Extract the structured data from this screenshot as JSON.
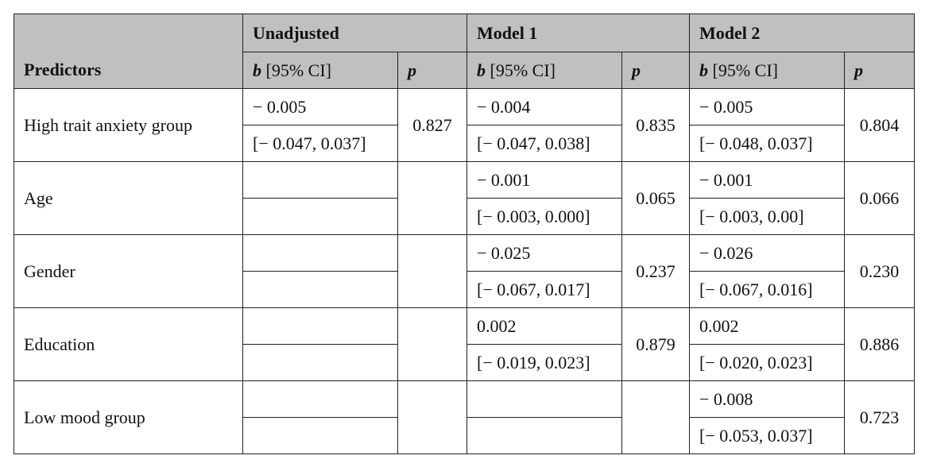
{
  "table": {
    "predictors_header": "Predictors",
    "groups": [
      "Unadjusted",
      "Model 1",
      "Model 2"
    ],
    "b_symbol": "b",
    "b_ci": "[95% CI]",
    "p_symbol": "p",
    "rows": [
      {
        "predictor": "High trait anxiety group",
        "models": [
          {
            "b": "− 0.005",
            "ci": "[− 0.047, 0.037]",
            "p": "0.827"
          },
          {
            "b": "− 0.004",
            "ci": "[− 0.047, 0.038]",
            "p": "0.835"
          },
          {
            "b": "− 0.005",
            "ci": "[− 0.048, 0.037]",
            "p": "0.804"
          }
        ]
      },
      {
        "predictor": "Age",
        "models": [
          null,
          {
            "b": "− 0.001",
            "ci": "[− 0.003, 0.000]",
            "p": "0.065"
          },
          {
            "b": "− 0.001",
            "ci": "[− 0.003, 0.00]",
            "p": "0.066"
          }
        ]
      },
      {
        "predictor": "Gender",
        "models": [
          null,
          {
            "b": "− 0.025",
            "ci": "[− 0.067, 0.017]",
            "p": "0.237"
          },
          {
            "b": "− 0.026",
            "ci": "[− 0.067, 0.016]",
            "p": "0.230"
          }
        ]
      },
      {
        "predictor": "Education",
        "models": [
          null,
          {
            "b": "0.002",
            "ci": "[− 0.019, 0.023]",
            "p": "0.879"
          },
          {
            "b": "0.002",
            "ci": "[− 0.020, 0.023]",
            "p": "0.886"
          }
        ]
      },
      {
        "predictor": "Low mood group",
        "models": [
          null,
          null,
          {
            "b": "− 0.008",
            "ci": "[− 0.053, 0.037]",
            "p": "0.723"
          }
        ]
      }
    ]
  }
}
